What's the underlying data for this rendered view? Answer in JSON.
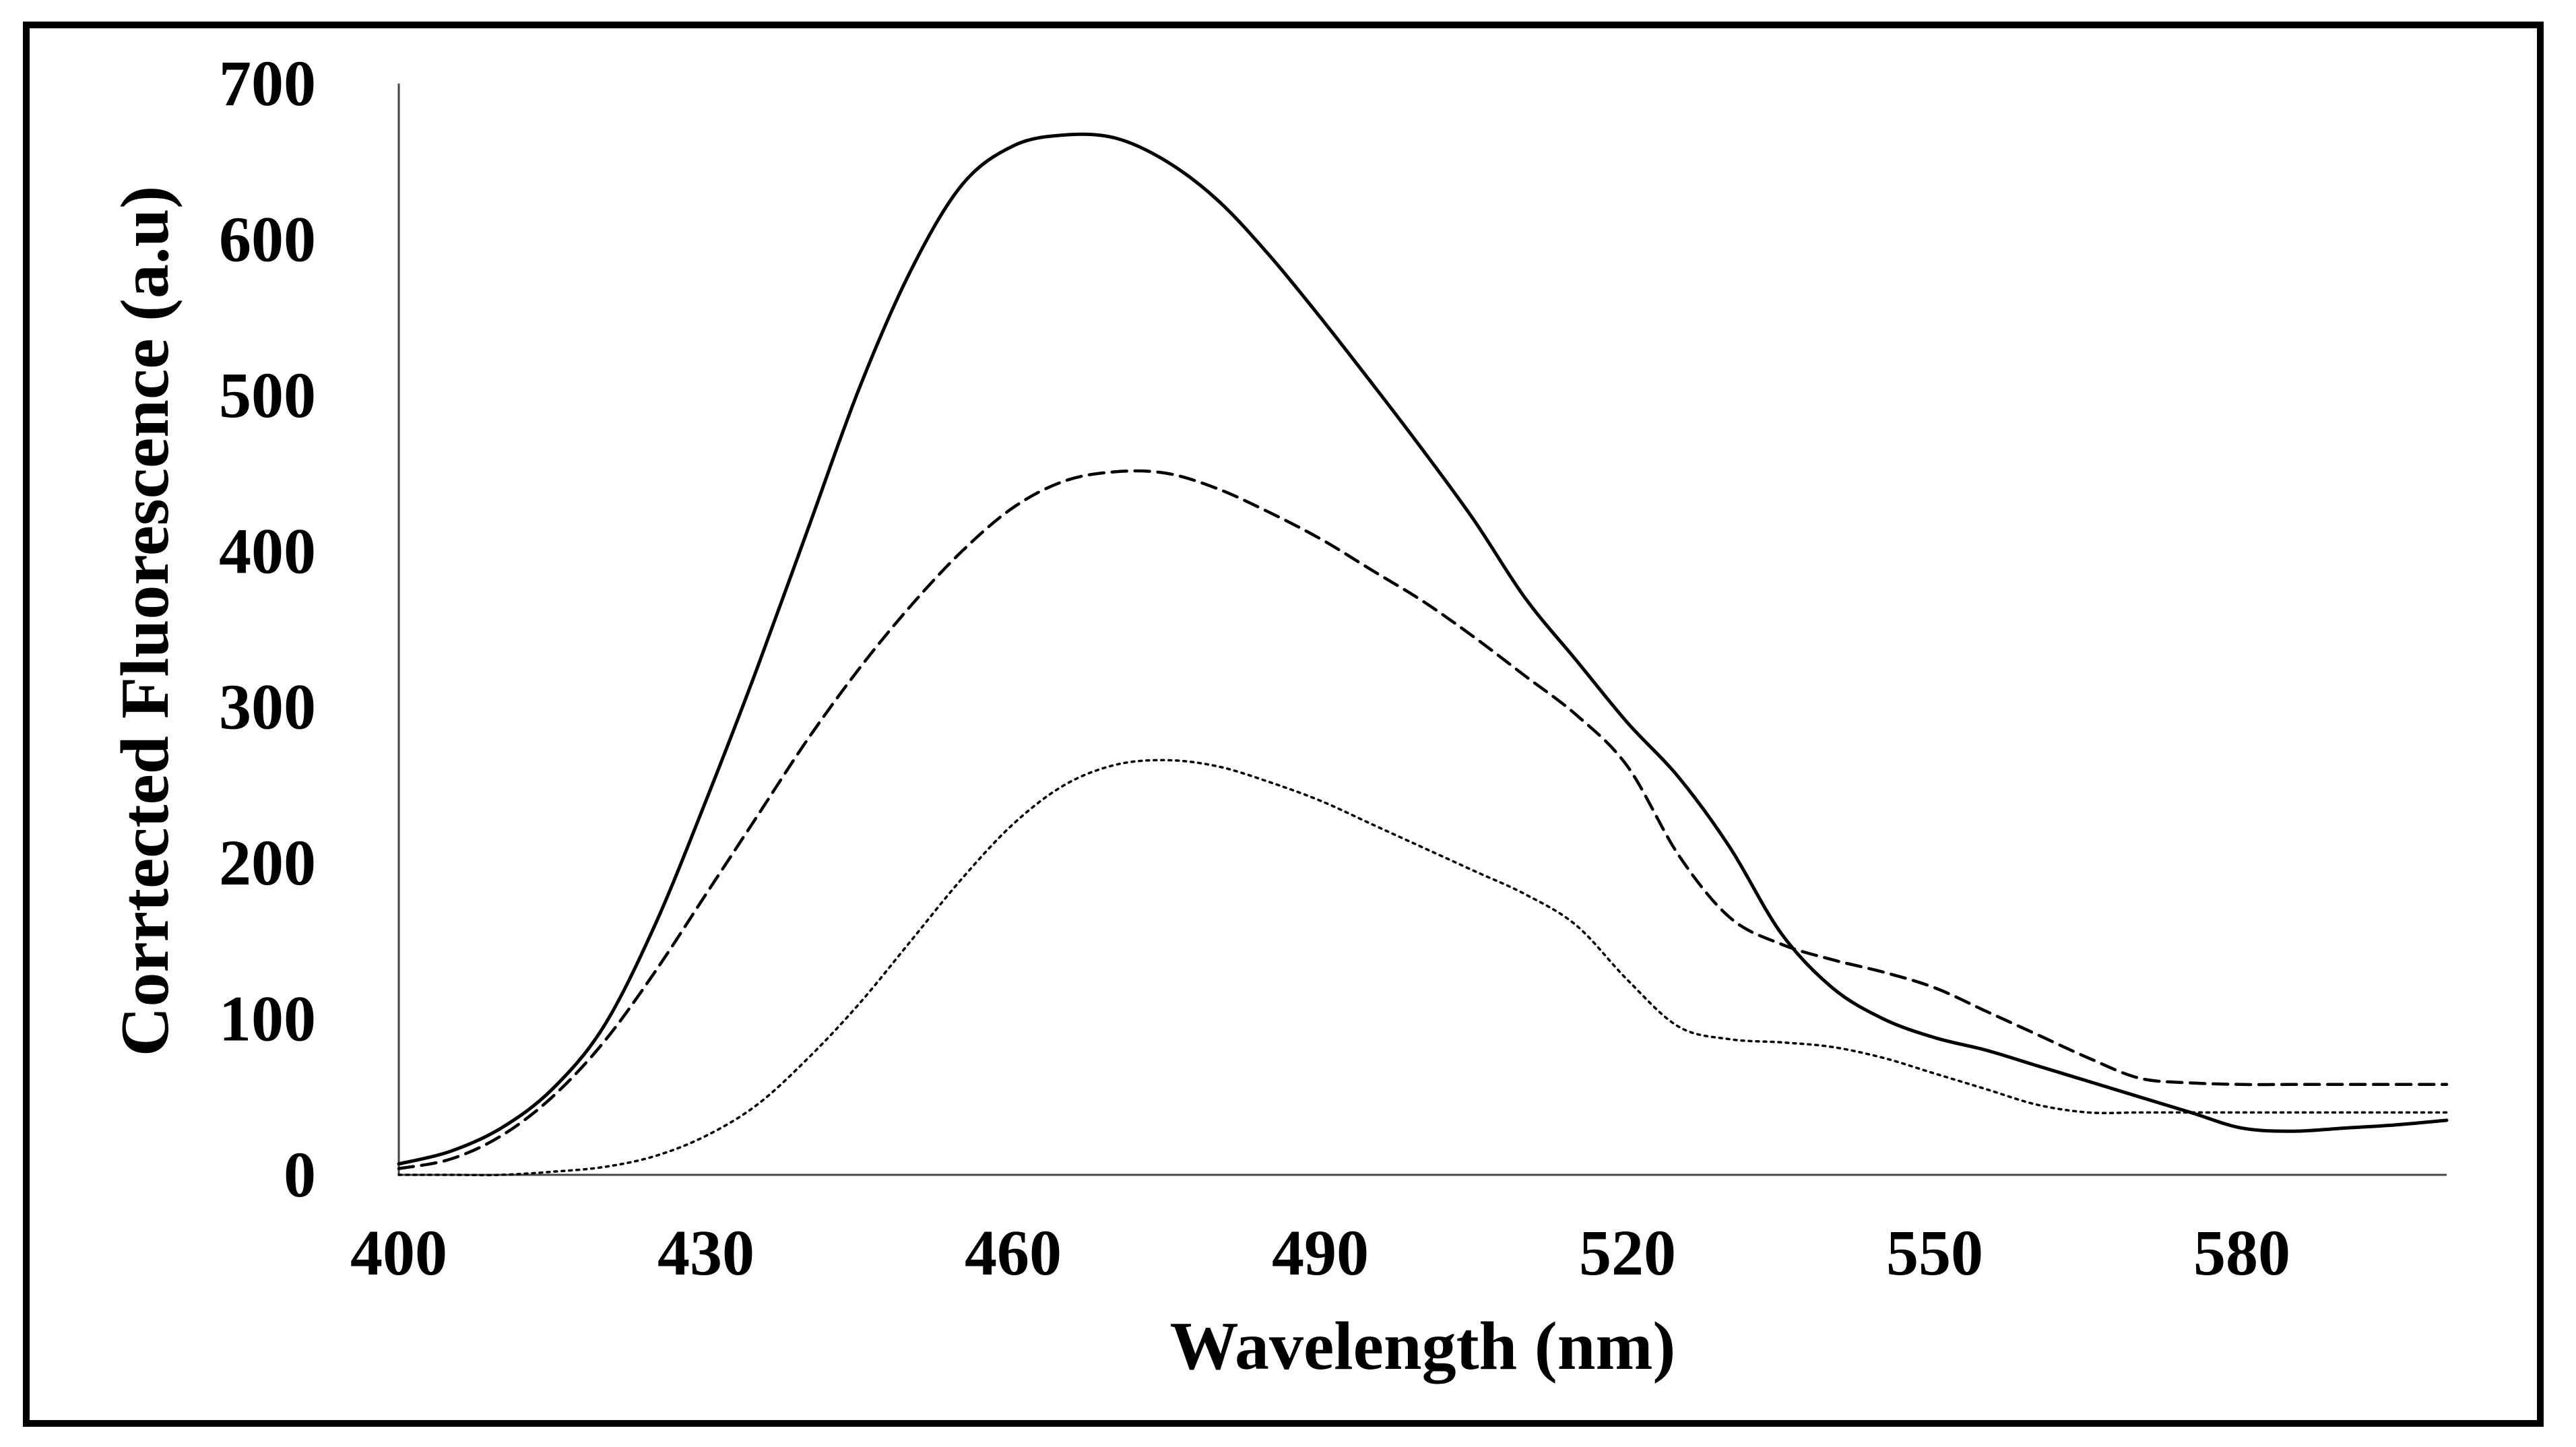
{
  "chart_data": {
    "type": "line",
    "title": "",
    "xlabel": "Wavelength (nm)",
    "ylabel": "Corrtected Fluorescence (a.u)",
    "xlim": [
      400,
      600
    ],
    "ylim": [
      0,
      700
    ],
    "xticks": [
      400,
      430,
      460,
      490,
      520,
      550,
      580
    ],
    "yticks": [
      0,
      100,
      200,
      300,
      400,
      500,
      600,
      700
    ],
    "grid": false,
    "legend": "none",
    "series": [
      {
        "name": "solid",
        "style": "solid",
        "x": [
          400,
          405,
          410,
          415,
          420,
          425,
          430,
          435,
          440,
          445,
          450,
          455,
          460,
          465,
          470,
          475,
          480,
          485,
          490,
          495,
          500,
          505,
          510,
          515,
          520,
          525,
          530,
          535,
          540,
          545,
          550,
          555,
          560,
          565,
          570,
          575,
          580,
          585,
          590,
          595,
          600
        ],
        "values": [
          7,
          15,
          30,
          55,
          95,
          160,
          240,
          325,
          415,
          505,
          580,
          635,
          660,
          667,
          665,
          650,
          625,
          590,
          550,
          508,
          465,
          420,
          370,
          330,
          290,
          255,
          210,
          155,
          120,
          100,
          88,
          80,
          70,
          60,
          50,
          40,
          30,
          28,
          30,
          32,
          35
        ]
      },
      {
        "name": "dashed",
        "style": "dashed",
        "x": [
          400,
          405,
          410,
          415,
          420,
          425,
          430,
          435,
          440,
          445,
          450,
          455,
          460,
          465,
          470,
          475,
          480,
          485,
          490,
          495,
          500,
          505,
          510,
          515,
          520,
          525,
          530,
          535,
          540,
          545,
          550,
          555,
          560,
          565,
          570,
          575,
          580,
          585,
          590,
          595,
          600
        ],
        "values": [
          4,
          10,
          25,
          50,
          85,
          130,
          180,
          230,
          280,
          325,
          365,
          400,
          428,
          445,
          451,
          450,
          440,
          425,
          408,
          388,
          368,
          345,
          320,
          295,
          262,
          205,
          165,
          148,
          138,
          130,
          120,
          105,
          90,
          75,
          62,
          59,
          58,
          58,
          58,
          58,
          58
        ]
      },
      {
        "name": "dotted",
        "style": "dotted",
        "x": [
          400,
          405,
          410,
          415,
          420,
          425,
          430,
          435,
          440,
          445,
          450,
          455,
          460,
          465,
          470,
          475,
          480,
          485,
          490,
          495,
          500,
          505,
          510,
          515,
          520,
          525,
          530,
          535,
          540,
          545,
          550,
          555,
          560,
          565,
          570,
          575,
          580,
          585,
          590,
          595,
          600
        ],
        "values": [
          0,
          0,
          0,
          2,
          5,
          12,
          25,
          45,
          75,
          110,
          150,
          190,
          225,
          250,
          263,
          266,
          262,
          252,
          240,
          225,
          210,
          195,
          180,
          160,
          125,
          95,
          87,
          85,
          82,
          75,
          65,
          55,
          45,
          40,
          40,
          40,
          40,
          40,
          40,
          40,
          40
        ]
      }
    ]
  }
}
